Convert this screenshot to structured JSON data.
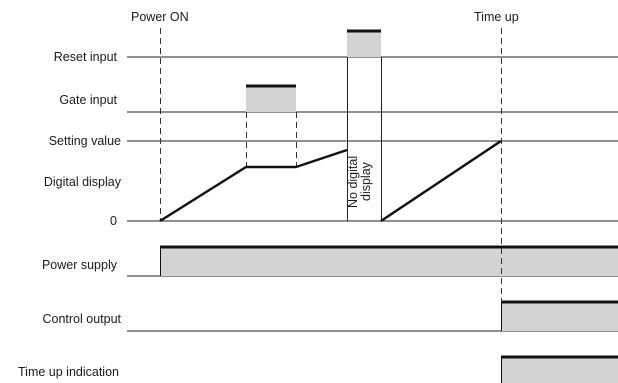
{
  "events": {
    "power_on": "Power ON",
    "time_up": "Time up"
  },
  "rows": {
    "reset_input": "Reset input",
    "gate_input": "Gate input",
    "setting_value": "Setting value",
    "digital_display": "Digital display",
    "zero": "0",
    "power_supply": "Power supply",
    "control_output": "Control output",
    "time_up_indication": "Time up indication"
  },
  "annotation": {
    "line1": "No digital",
    "line2": "display"
  },
  "colors": {
    "signal_fill": "#d3d3d3",
    "signal_edge": "#111111",
    "line": "#222222"
  }
}
